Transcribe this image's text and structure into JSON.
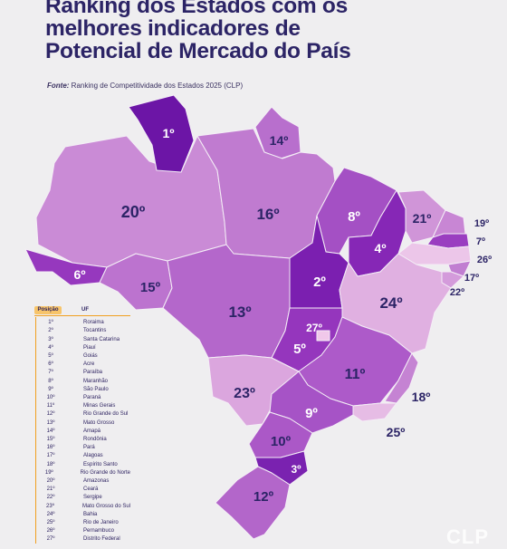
{
  "title_lines": [
    "Ranking dos Estados com os",
    "melhores indicadores de",
    "Potencial de Mercado do País"
  ],
  "source_label": "Fonte:",
  "source_text": "Ranking de Competitividade dos Estados 2025 (CLP)",
  "legend": {
    "header_position": "Posição",
    "header_state": "UF",
    "rows": [
      {
        "pos": "1º",
        "uf": "Roraima"
      },
      {
        "pos": "2º",
        "uf": "Tocantins"
      },
      {
        "pos": "3º",
        "uf": "Santa Catarina"
      },
      {
        "pos": "4º",
        "uf": "Piauí"
      },
      {
        "pos": "5º",
        "uf": "Goiás"
      },
      {
        "pos": "6º",
        "uf": "Acre"
      },
      {
        "pos": "7º",
        "uf": "Paraíba"
      },
      {
        "pos": "8º",
        "uf": "Maranhão"
      },
      {
        "pos": "9º",
        "uf": "São Paulo"
      },
      {
        "pos": "10º",
        "uf": "Paraná"
      },
      {
        "pos": "11º",
        "uf": "Minas Gerais"
      },
      {
        "pos": "12º",
        "uf": "Rio Grande do Sul"
      },
      {
        "pos": "13º",
        "uf": "Mato Grosso"
      },
      {
        "pos": "14º",
        "uf": "Amapá"
      },
      {
        "pos": "15º",
        "uf": "Rondônia"
      },
      {
        "pos": "16º",
        "uf": "Pará"
      },
      {
        "pos": "17º",
        "uf": "Alagoas"
      },
      {
        "pos": "18º",
        "uf": "Espírito Santo"
      },
      {
        "pos": "19º",
        "uf": "Rio Grande do Norte"
      },
      {
        "pos": "20º",
        "uf": "Amazonas"
      },
      {
        "pos": "21º",
        "uf": "Ceará"
      },
      {
        "pos": "22º",
        "uf": "Sergipe"
      },
      {
        "pos": "23º",
        "uf": "Mato Grosso do Sul"
      },
      {
        "pos": "24º",
        "uf": "Bahia"
      },
      {
        "pos": "25º",
        "uf": "Rio de Janeiro"
      },
      {
        "pos": "26º",
        "uf": "Pernambuco"
      },
      {
        "pos": "27º",
        "uf": "Distrito Federal"
      }
    ]
  },
  "map_states": [
    {
      "uf": "Roraima",
      "label": "1º",
      "color": "#6c15a6"
    },
    {
      "uf": "Tocantins",
      "label": "2º",
      "color": "#7b1fb0"
    },
    {
      "uf": "Santa Catarina",
      "label": "3º",
      "color": "#7a22b0"
    },
    {
      "uf": "Piauí",
      "label": "4º",
      "color": "#8627b6"
    },
    {
      "uf": "Goiás",
      "label": "5º",
      "color": "#9536bd"
    },
    {
      "uf": "Acre",
      "label": "6º",
      "color": "#9638be"
    },
    {
      "uf": "Paraíba",
      "label": "7º",
      "color": "#9a3ec0"
    },
    {
      "uf": "Maranhão",
      "label": "8º",
      "color": "#a450c4"
    },
    {
      "uf": "São Paulo",
      "label": "9º",
      "color": "#a653c6"
    },
    {
      "uf": "Paraná",
      "label": "10º",
      "color": "#ab58c7"
    },
    {
      "uf": "Minas Gerais",
      "label": "11º",
      "color": "#ad5ac9"
    },
    {
      "uf": "Rio Grande do Sul",
      "label": "12º",
      "color": "#b366ca"
    },
    {
      "uf": "Mato Grosso",
      "label": "13º",
      "color": "#b467cb"
    },
    {
      "uf": "Amapá",
      "label": "14º",
      "color": "#b86fcd"
    },
    {
      "uf": "Rondônia",
      "label": "15º",
      "color": "#bc73cf"
    },
    {
      "uf": "Pará",
      "label": "16º",
      "color": "#c07bd0"
    },
    {
      "uf": "Alagoas",
      "label": "17º",
      "color": "#c17ed1"
    },
    {
      "uf": "Espírito Santo",
      "label": "18º",
      "color": "#c583d3"
    },
    {
      "uf": "Rio Grande do Norte",
      "label": "19º",
      "color": "#c886d4"
    },
    {
      "uf": "Amazonas",
      "label": "20º",
      "color": "#ca8bd6"
    },
    {
      "uf": "Ceará",
      "label": "21º",
      "color": "#d095d8"
    },
    {
      "uf": "Sergipe",
      "label": "22º",
      "color": "#d49bdb"
    },
    {
      "uf": "Mato Grosso do Sul",
      "label": "23º",
      "color": "#dba6de"
    },
    {
      "uf": "Bahia",
      "label": "24º",
      "color": "#e0b0e1"
    },
    {
      "uf": "Rio de Janeiro",
      "label": "25º",
      "color": "#e6bce5"
    },
    {
      "uf": "Pernambuco",
      "label": "26º",
      "color": "#ecc6e9"
    },
    {
      "uf": "Distrito Federal",
      "label": "27º",
      "color": "#f0c8ea"
    }
  ],
  "logo_text": "CLP"
}
